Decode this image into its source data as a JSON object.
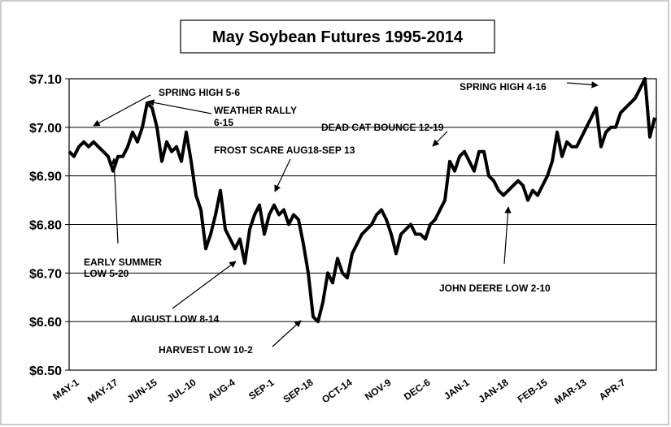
{
  "chart_data": {
    "type": "line",
    "title": "May Soybean Futures  1995-2014",
    "categories": [
      "MAY-1",
      null,
      null,
      null,
      null,
      null,
      null,
      null,
      "MAY-17",
      null,
      null,
      null,
      null,
      null,
      null,
      null,
      "JUN-15",
      null,
      null,
      null,
      null,
      null,
      null,
      null,
      "JUL-10",
      null,
      null,
      null,
      null,
      null,
      null,
      null,
      "AUG-4",
      null,
      null,
      null,
      null,
      null,
      null,
      null,
      "SEP-1",
      null,
      null,
      null,
      null,
      null,
      null,
      null,
      "SEP-18",
      null,
      null,
      null,
      null,
      null,
      null,
      null,
      "OCT-14",
      null,
      null,
      null,
      null,
      null,
      null,
      null,
      "NOV-9",
      null,
      null,
      null,
      null,
      null,
      null,
      null,
      "DEC-6",
      null,
      null,
      null,
      null,
      null,
      null,
      null,
      "JAN-1",
      null,
      null,
      null,
      null,
      null,
      null,
      null,
      "JAN-18",
      null,
      null,
      null,
      null,
      null,
      null,
      null,
      "FEB-15",
      null,
      null,
      null,
      null,
      null,
      null,
      null,
      "MAR-13",
      null,
      null,
      null,
      null,
      null,
      null,
      null,
      "APR-7",
      null,
      null,
      null,
      null,
      null,
      null,
      null,
      null
    ],
    "series": [
      {
        "name": "May Soybean Futures",
        "color": "#000000",
        "values": [
          6.95,
          6.94,
          6.96,
          6.97,
          6.96,
          6.97,
          6.96,
          6.95,
          6.94,
          6.91,
          6.94,
          6.94,
          6.96,
          6.99,
          6.97,
          7.0,
          7.05,
          7.04,
          7.0,
          6.93,
          6.97,
          6.95,
          6.96,
          6.93,
          6.99,
          6.93,
          6.86,
          6.83,
          6.75,
          6.78,
          6.82,
          6.87,
          6.79,
          6.77,
          6.75,
          6.77,
          6.72,
          6.79,
          6.82,
          6.84,
          6.78,
          6.82,
          6.84,
          6.82,
          6.83,
          6.8,
          6.82,
          6.81,
          6.76,
          6.7,
          6.61,
          6.6,
          6.64,
          6.7,
          6.68,
          6.73,
          6.7,
          6.69,
          6.74,
          6.76,
          6.78,
          6.79,
          6.8,
          6.82,
          6.83,
          6.81,
          6.78,
          6.74,
          6.78,
          6.79,
          6.8,
          6.78,
          6.78,
          6.77,
          6.8,
          6.81,
          6.83,
          6.85,
          6.93,
          6.91,
          6.94,
          6.95,
          6.93,
          6.91,
          6.95,
          6.95,
          6.9,
          6.89,
          6.87,
          6.86,
          6.87,
          6.88,
          6.89,
          6.88,
          6.85,
          6.87,
          6.86,
          6.88,
          6.9,
          6.93,
          6.99,
          6.94,
          6.97,
          6.96,
          6.96,
          6.98,
          7.0,
          7.02,
          7.04,
          6.96,
          6.99,
          7.0,
          7.0,
          7.03,
          7.04,
          7.05,
          7.06,
          7.08,
          7.1,
          6.98,
          7.02
        ]
      }
    ],
    "ylim": [
      6.5,
      7.1
    ],
    "yticks": [
      {
        "value": 6.5,
        "label": "$6.50"
      },
      {
        "value": 6.6,
        "label": "$6.60"
      },
      {
        "value": 6.7,
        "label": "$6.70"
      },
      {
        "value": 6.8,
        "label": "$6.80"
      },
      {
        "value": 6.9,
        "label": "$6.90"
      },
      {
        "value": 7.0,
        "label": "$7.00"
      },
      {
        "value": 7.1,
        "label": "$7.10"
      }
    ],
    "grid": true,
    "annotations": [
      "SPRING HIGH 5-6",
      "WEATHER RALLY",
      "6-15",
      "FROST SCARE AUG18-SEP 13",
      "DEAD CAT BOUNCE 12-19",
      "SPRING HIGH 4-16",
      "EARLY SUMMER",
      "LOW 5-20",
      "AUGUST LOW 8-14",
      "HARVEST LOW 10-2",
      "JOHN DEERE LOW 2-10"
    ]
  }
}
